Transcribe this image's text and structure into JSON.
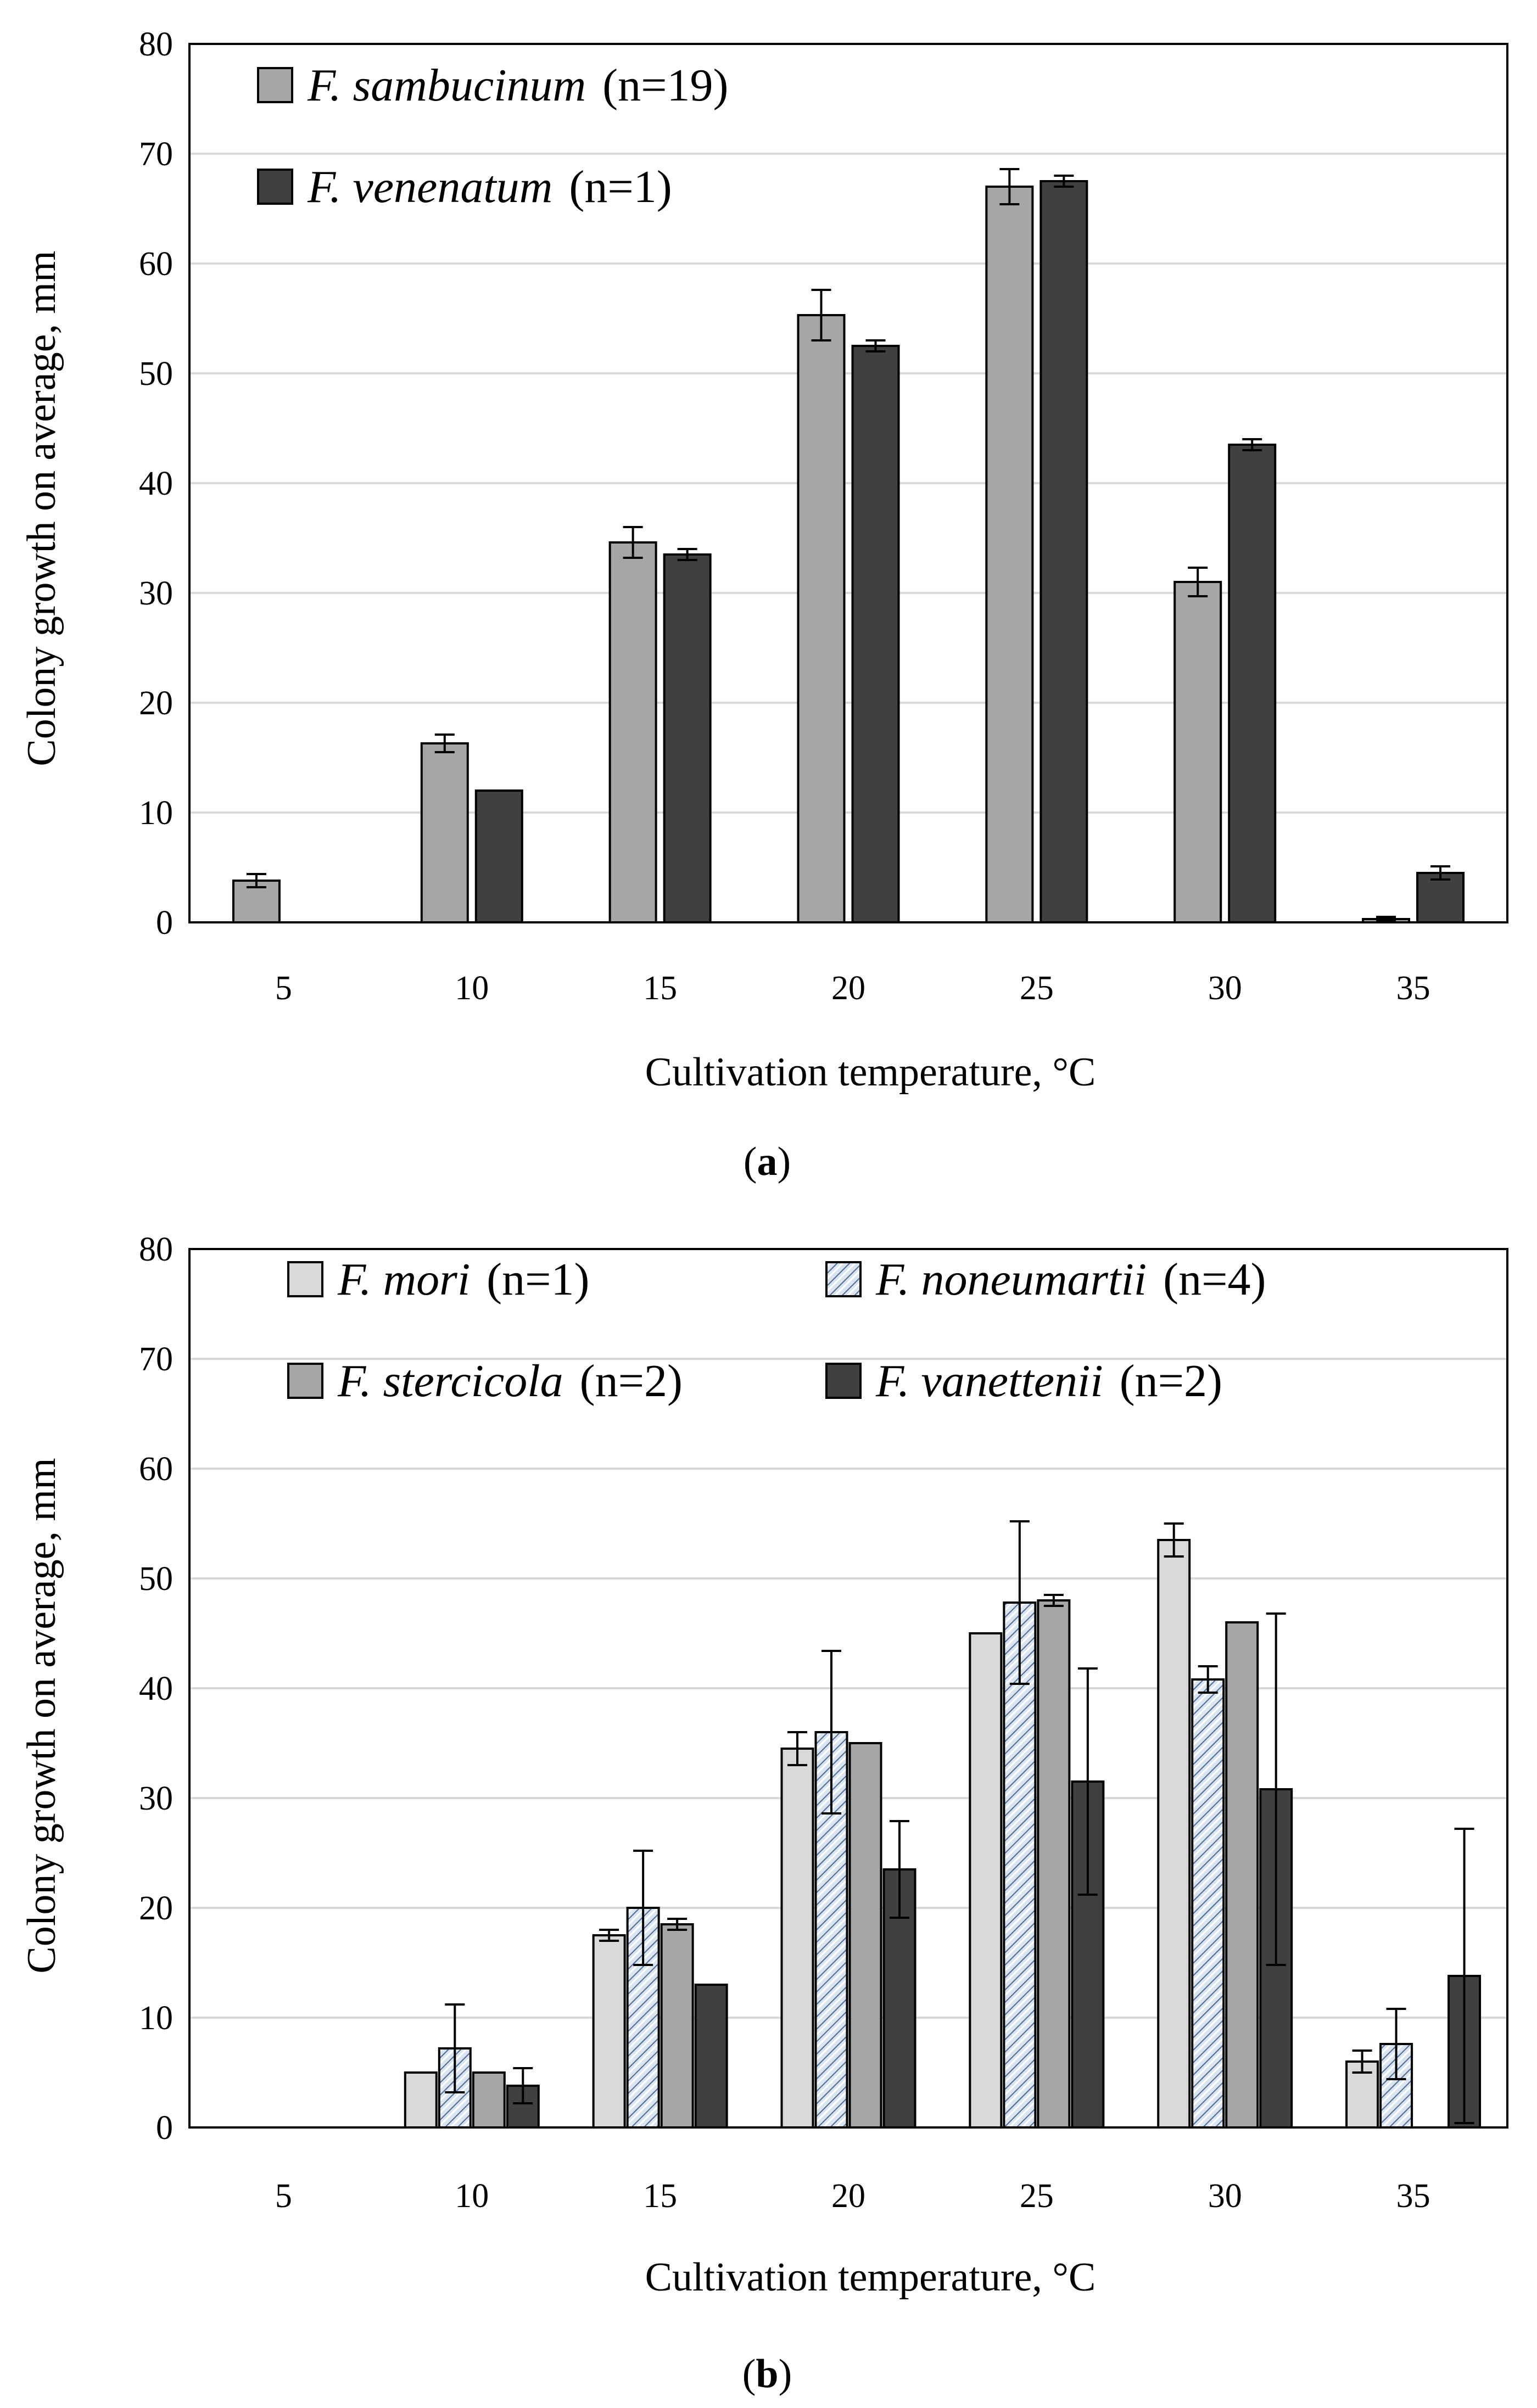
{
  "chart_data": [
    {
      "type": "bar",
      "panel_label": "(a)",
      "panel_letter": "a",
      "xlabel": "Cultivation temperature, °C",
      "ylabel": "Colony growth on average, mm",
      "categories": [
        "5",
        "10",
        "15",
        "20",
        "25",
        "30",
        "35"
      ],
      "ylim": [
        0,
        80
      ],
      "yticks": [
        0,
        10,
        20,
        30,
        40,
        50,
        60,
        70,
        80
      ],
      "grid": true,
      "legend_position": "top-left",
      "series": [
        {
          "name": "F. sambucinum",
          "italic": "F. sambucinum",
          "suffix": "(n=19)",
          "color": "#a6a6a6",
          "pattern": "solid",
          "values": [
            3.8,
            16.3,
            34.6,
            55.3,
            67.0,
            31.0,
            0.3
          ],
          "errors": [
            0.6,
            0.8,
            1.4,
            2.3,
            1.6,
            1.3,
            0.2
          ]
        },
        {
          "name": "F. venenatum",
          "italic": "F. venenatum",
          "suffix": "(n=1)",
          "color": "#404040",
          "pattern": "solid",
          "values": [
            0,
            12.0,
            33.5,
            52.5,
            67.5,
            43.5,
            4.5
          ],
          "errors": [
            0,
            0,
            0.5,
            0.5,
            0.5,
            0.5,
            0.6
          ]
        }
      ]
    },
    {
      "type": "bar",
      "panel_label": "(b)",
      "panel_letter": "b",
      "xlabel": "Cultivation temperature, °C",
      "ylabel": "Colony growth on average, mm",
      "categories": [
        "5",
        "10",
        "15",
        "20",
        "25",
        "30",
        "35"
      ],
      "ylim": [
        0,
        80
      ],
      "yticks": [
        0,
        10,
        20,
        30,
        40,
        50,
        60,
        70,
        80
      ],
      "grid": true,
      "legend_position": "top",
      "series": [
        {
          "name": "F. mori",
          "italic": "F. mori",
          "suffix": "(n=1)",
          "color": "#d9d9d9",
          "pattern": "solid",
          "values": [
            0,
            5.0,
            17.5,
            34.5,
            45.0,
            53.5,
            6.0
          ],
          "errors": [
            0,
            0,
            0.5,
            1.5,
            0,
            1.5,
            1.0
          ]
        },
        {
          "name": "F. noneumartii",
          "italic": "F. noneumartii",
          "suffix": "(n=4)",
          "color": "#c5d9f1",
          "pattern": "hatch",
          "values": [
            0,
            7.2,
            20.0,
            36.0,
            47.8,
            40.8,
            7.6
          ],
          "errors": [
            0,
            4.0,
            5.2,
            7.4,
            7.4,
            1.2,
            3.2
          ]
        },
        {
          "name": "F. stercicola",
          "italic": "F. stercicola",
          "suffix": "(n=2)",
          "color": "#a6a6a6",
          "pattern": "solid",
          "values": [
            0,
            5.0,
            18.5,
            35.0,
            48.0,
            46.0,
            0
          ],
          "errors": [
            0,
            0,
            0.5,
            0,
            0.5,
            0,
            0
          ]
        },
        {
          "name": "F. vanettenii",
          "italic": "F. vanettenii",
          "suffix": "(n=2)",
          "color": "#404040",
          "pattern": "solid",
          "values": [
            0,
            3.8,
            13.0,
            23.5,
            31.5,
            30.8,
            13.8
          ],
          "errors": [
            0,
            1.6,
            0,
            4.4,
            10.3,
            16.0,
            13.4
          ]
        }
      ]
    }
  ]
}
